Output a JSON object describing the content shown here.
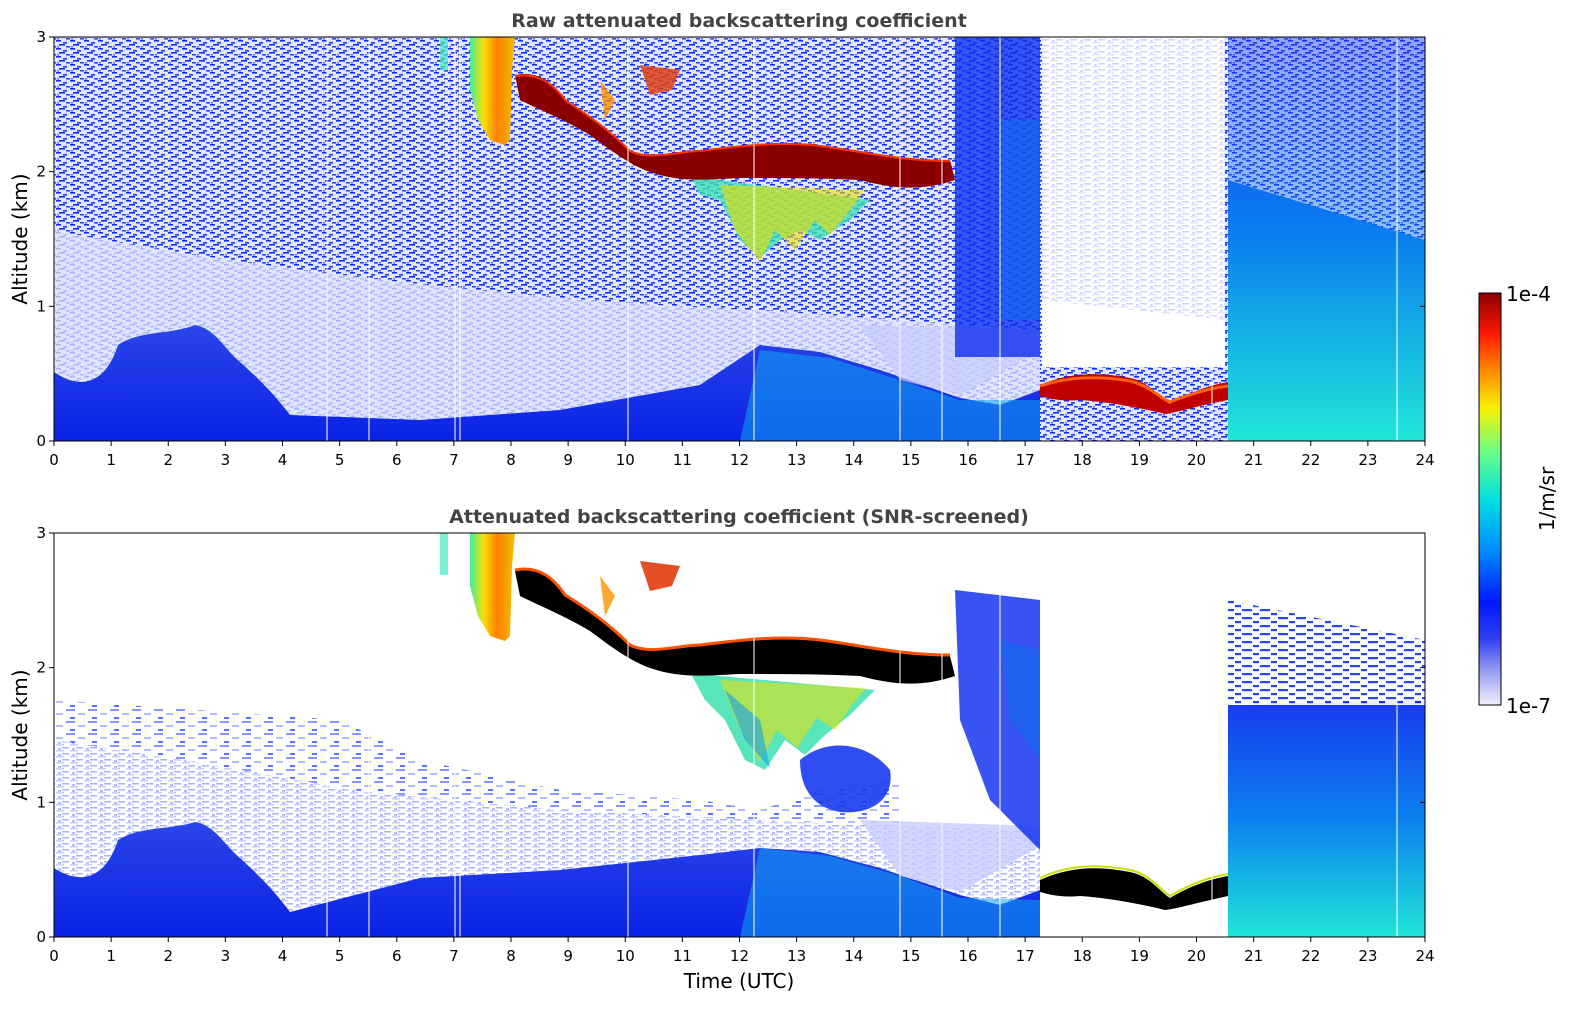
{
  "chart_data": [
    {
      "type": "heatmap",
      "title": "Raw attenuated backscattering coefficient",
      "xlabel": "",
      "ylabel": "Altitude (km)",
      "xlim": [
        0,
        24
      ],
      "ylim": [
        0,
        3
      ],
      "xticks": [
        "0",
        "1",
        "2",
        "3",
        "4",
        "5",
        "6",
        "7",
        "8",
        "9",
        "10",
        "11",
        "12",
        "13",
        "14",
        "15",
        "16",
        "17",
        "18",
        "19",
        "20",
        "21",
        "22",
        "23",
        "24"
      ],
      "yticks": [
        "0",
        "1",
        "2",
        "3"
      ],
      "screened": false,
      "features": [
        {
          "kind": "cloud_layer",
          "t_start": 8.1,
          "t_end": 15.8,
          "altitude_km": [
            2.65,
            2.4,
            2.05,
            2.08,
            2.05,
            1.95
          ],
          "intensity": "high"
        },
        {
          "kind": "cloud_layer",
          "t_start": 17.3,
          "t_end": 20.6,
          "altitude_km": [
            0.38,
            0.4,
            0.3,
            0.35
          ],
          "intensity": "high"
        },
        {
          "kind": "plume",
          "t_start": 7.35,
          "t_end": 8.05,
          "altitude_km": [
            2.2,
            3.0
          ],
          "intensity": "medium-high"
        },
        {
          "kind": "boundary_layer",
          "t_start": 0,
          "t_end": 24,
          "top_km": [
            0.45,
            0.75,
            0.8,
            0.55,
            0.2,
            0.25,
            0.3,
            0.55,
            0.45,
            0.25,
            0.3,
            0.3,
            0.3
          ],
          "intensity": "low-medium"
        },
        {
          "kind": "no_signal",
          "t_start": 17.3,
          "t_end": 20.5,
          "altitude_km": [
            0.6,
            3.0
          ]
        }
      ]
    },
    {
      "type": "heatmap",
      "title": "Attenuated backscattering coefficient (SNR-screened)",
      "xlabel": "Time (UTC)",
      "ylabel": "Altitude (km)",
      "xlim": [
        0,
        24
      ],
      "ylim": [
        0,
        3
      ],
      "xticks": [
        "0",
        "1",
        "2",
        "3",
        "4",
        "5",
        "6",
        "7",
        "8",
        "9",
        "10",
        "11",
        "12",
        "13",
        "14",
        "15",
        "16",
        "17",
        "18",
        "19",
        "20",
        "21",
        "22",
        "23",
        "24"
      ],
      "yticks": [
        "0",
        "1",
        "2",
        "3"
      ],
      "screened": true,
      "features": [
        {
          "kind": "cloud_layer",
          "t_start": 8.1,
          "t_end": 15.8,
          "altitude_km": [
            2.65,
            2.4,
            2.05,
            2.08,
            2.05,
            1.95
          ],
          "intensity": "saturated"
        },
        {
          "kind": "cloud_layer",
          "t_start": 17.3,
          "t_end": 20.6,
          "altitude_km": [
            0.38,
            0.4,
            0.3,
            0.35
          ],
          "intensity": "saturated"
        },
        {
          "kind": "screened_out",
          "t_start": 0,
          "t_end": 24,
          "above_km": 1.6
        }
      ]
    }
  ],
  "colorbar": {
    "label": "1/m/sr",
    "min_label": "1e-7",
    "max_label": "1e-4",
    "scale": "log",
    "colormap": "jet"
  },
  "colors": {
    "background": "#ffffff",
    "noise_blue": "#1030e0",
    "deep_blue": "#0a10d8",
    "saturated": "#000000"
  }
}
